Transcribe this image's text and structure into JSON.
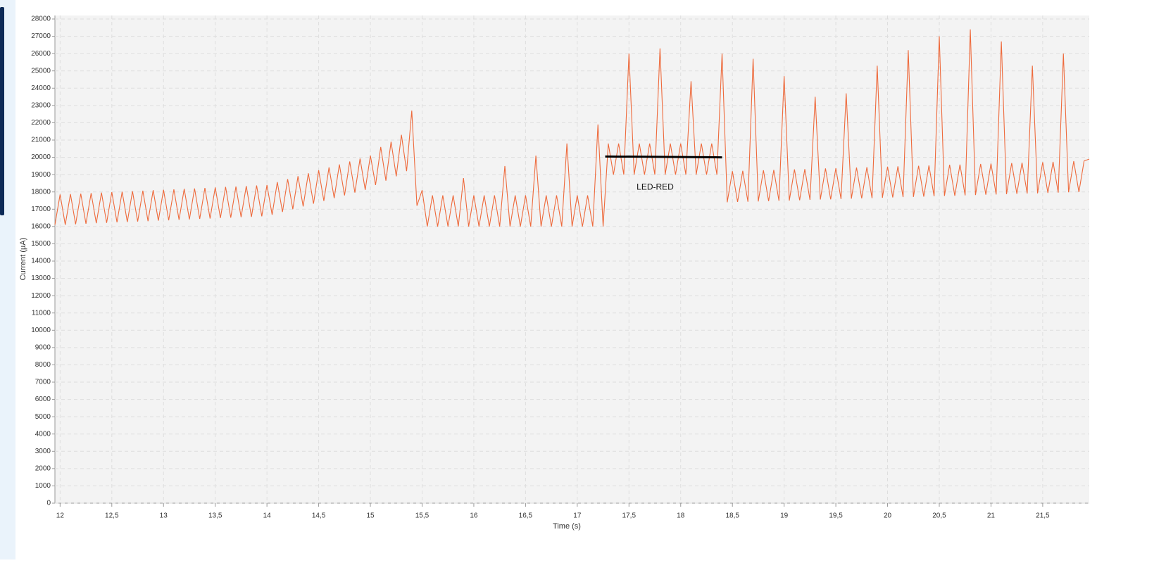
{
  "chart_data": {
    "type": "line",
    "xlabel": "Time (s)",
    "ylabel": "Current (µA)",
    "xlim": [
      11.95,
      21.95
    ],
    "ylim": [
      0,
      28000
    ],
    "xticks": [
      12,
      {
        "value": 12.5,
        "label": "12,5"
      },
      13,
      {
        "value": 13.5,
        "label": "13,5"
      },
      14,
      {
        "value": 14.5,
        "label": "14,5"
      },
      15,
      {
        "value": 15.5,
        "label": "15,5"
      },
      16,
      {
        "value": 16.5,
        "label": "16,5"
      },
      17,
      {
        "value": 17.5,
        "label": "17,5"
      },
      18,
      {
        "value": 18.5,
        "label": "18,5"
      },
      19,
      {
        "value": 19.5,
        "label": "19,5"
      },
      20,
      {
        "value": 20.5,
        "label": "20,5"
      },
      21,
      {
        "value": 21.5,
        "label": "21,5"
      }
    ],
    "yticks": [
      0,
      1000,
      2000,
      3000,
      4000,
      5000,
      6000,
      7000,
      8000,
      9000,
      10000,
      11000,
      12000,
      13000,
      14000,
      15000,
      16000,
      17000,
      18000,
      19000,
      20000,
      21000,
      22000,
      23000,
      24000,
      25000,
      26000,
      27000,
      28000
    ],
    "grid": true,
    "color": "#ee6a3c",
    "x": [
      11.95,
      12,
      12.05,
      12.1,
      12.15,
      12.2,
      12.25,
      12.3,
      12.35,
      12.4,
      12.45,
      12.5,
      12.55,
      12.6,
      12.65,
      12.7,
      12.75,
      12.8,
      12.85,
      12.9,
      12.95,
      13,
      13.05,
      13.1,
      13.15,
      13.2,
      13.25,
      13.3,
      13.35,
      13.4,
      13.45,
      13.5,
      13.55,
      13.6,
      13.65,
      13.7,
      13.75,
      13.8,
      13.85,
      13.9,
      13.95,
      14,
      14.05,
      14.1,
      14.15,
      14.2,
      14.25,
      14.3,
      14.35,
      14.4,
      14.45,
      14.5,
      14.55,
      14.6,
      14.65,
      14.7,
      14.75,
      14.8,
      14.85,
      14.9,
      14.95,
      15,
      15.05,
      15.1,
      15.15,
      15.2,
      15.25,
      15.3,
      15.35,
      15.4,
      15.45,
      15.5,
      15.55,
      15.6,
      15.65,
      15.7,
      15.75,
      15.8,
      15.85,
      15.9,
      15.95,
      16,
      16.05,
      16.1,
      16.15,
      16.2,
      16.25,
      16.3,
      16.35,
      16.4,
      16.45,
      16.5,
      16.55,
      16.6,
      16.65,
      16.7,
      16.75,
      16.8,
      16.85,
      16.9,
      16.95,
      17,
      17.05,
      17.1,
      17.15,
      17.2,
      17.25,
      17.3,
      17.35,
      17.4,
      17.45,
      17.5,
      17.55,
      17.6,
      17.65,
      17.7,
      17.75,
      17.8,
      17.85,
      17.9,
      17.95,
      18,
      18.05,
      18.1,
      18.15,
      18.2,
      18.25,
      18.3,
      18.35,
      18.4,
      18.45,
      18.5,
      18.55,
      18.6,
      18.65,
      18.7,
      18.75,
      18.8,
      18.85,
      18.9,
      18.95,
      19,
      19.05,
      19.1,
      19.15,
      19.2,
      19.25,
      19.3,
      19.35,
      19.4,
      19.45,
      19.5,
      19.55,
      19.6,
      19.65,
      19.7,
      19.75,
      19.8,
      19.85,
      19.9,
      19.95,
      20,
      20.05,
      20.1,
      20.15,
      20.2,
      20.25,
      20.3,
      20.35,
      20.4,
      20.45,
      20.5,
      20.55,
      20.6,
      20.65,
      20.7,
      20.75,
      20.8,
      20.85,
      20.9,
      20.95,
      21,
      21.05,
      21.1,
      21.15,
      21.2,
      21.25,
      21.3,
      21.35,
      21.4,
      21.45,
      21.5,
      21.55,
      21.6,
      21.65,
      21.7,
      21.75,
      21.8,
      21.85,
      21.9,
      21.95
    ],
    "values": [
      16100,
      17850,
      16100,
      17880,
      16130,
      17900,
      16160,
      17930,
      16190,
      17960,
      16210,
      17990,
      16240,
      18010,
      16260,
      18040,
      16290,
      18070,
      16310,
      18100,
      16340,
      18120,
      16360,
      18150,
      16390,
      18180,
      16410,
      18200,
      16440,
      18230,
      16460,
      18260,
      16490,
      18290,
      16510,
      18310,
      16540,
      18340,
      16560,
      18370,
      16590,
      18400,
      16680,
      18570,
      16840,
      18740,
      17000,
      18910,
      17160,
      19080,
      17320,
      19250,
      17480,
      19420,
      17640,
      19590,
      17800,
      19760,
      17960,
      19930,
      18120,
      20100,
      18400,
      20600,
      18650,
      20900,
      18900,
      21300,
      19200,
      22700,
      17200,
      18100,
      16000,
      17800,
      16000,
      17800,
      16000,
      17800,
      16000,
      18800,
      16000,
      17800,
      16000,
      17800,
      16000,
      17800,
      16000,
      19500,
      16000,
      17800,
      16000,
      17800,
      16000,
      20100,
      16000,
      17800,
      16000,
      17800,
      16000,
      20800,
      16000,
      17800,
      16000,
      17800,
      16000,
      21900,
      16000,
      20800,
      19000,
      20800,
      19000,
      26000,
      19000,
      20800,
      19000,
      20800,
      19000,
      26300,
      19000,
      20800,
      19000,
      20800,
      19000,
      24400,
      19000,
      20800,
      19000,
      20800,
      19000,
      26000,
      17400,
      19200,
      17420,
      19220,
      17430,
      25700,
      17450,
      19250,
      17470,
      19270,
      17490,
      24700,
      17500,
      19300,
      17520,
      19320,
      17540,
      23500,
      17560,
      19360,
      17570,
      19370,
      17590,
      23700,
      17610,
      19410,
      17630,
      19430,
      17640,
      25300,
      17660,
      19460,
      17680,
      19480,
      17700,
      26200,
      17710,
      19510,
      17730,
      19530,
      17750,
      27000,
      17770,
      19570,
      17780,
      19580,
      17800,
      27400,
      17820,
      19620,
      17840,
      19640,
      17850,
      26700,
      17870,
      19670,
      17890,
      19690,
      17910,
      25300,
      17920,
      19720,
      17940,
      19740,
      17960,
      26000,
      17980,
      19780,
      17990,
      19790,
      19900
    ],
    "annotations": [
      {
        "text": "LED-RED",
        "x": [
          17.27,
          18.4
        ],
        "y": [
          20050,
          20000
        ],
        "color": "#000000"
      }
    ]
  }
}
